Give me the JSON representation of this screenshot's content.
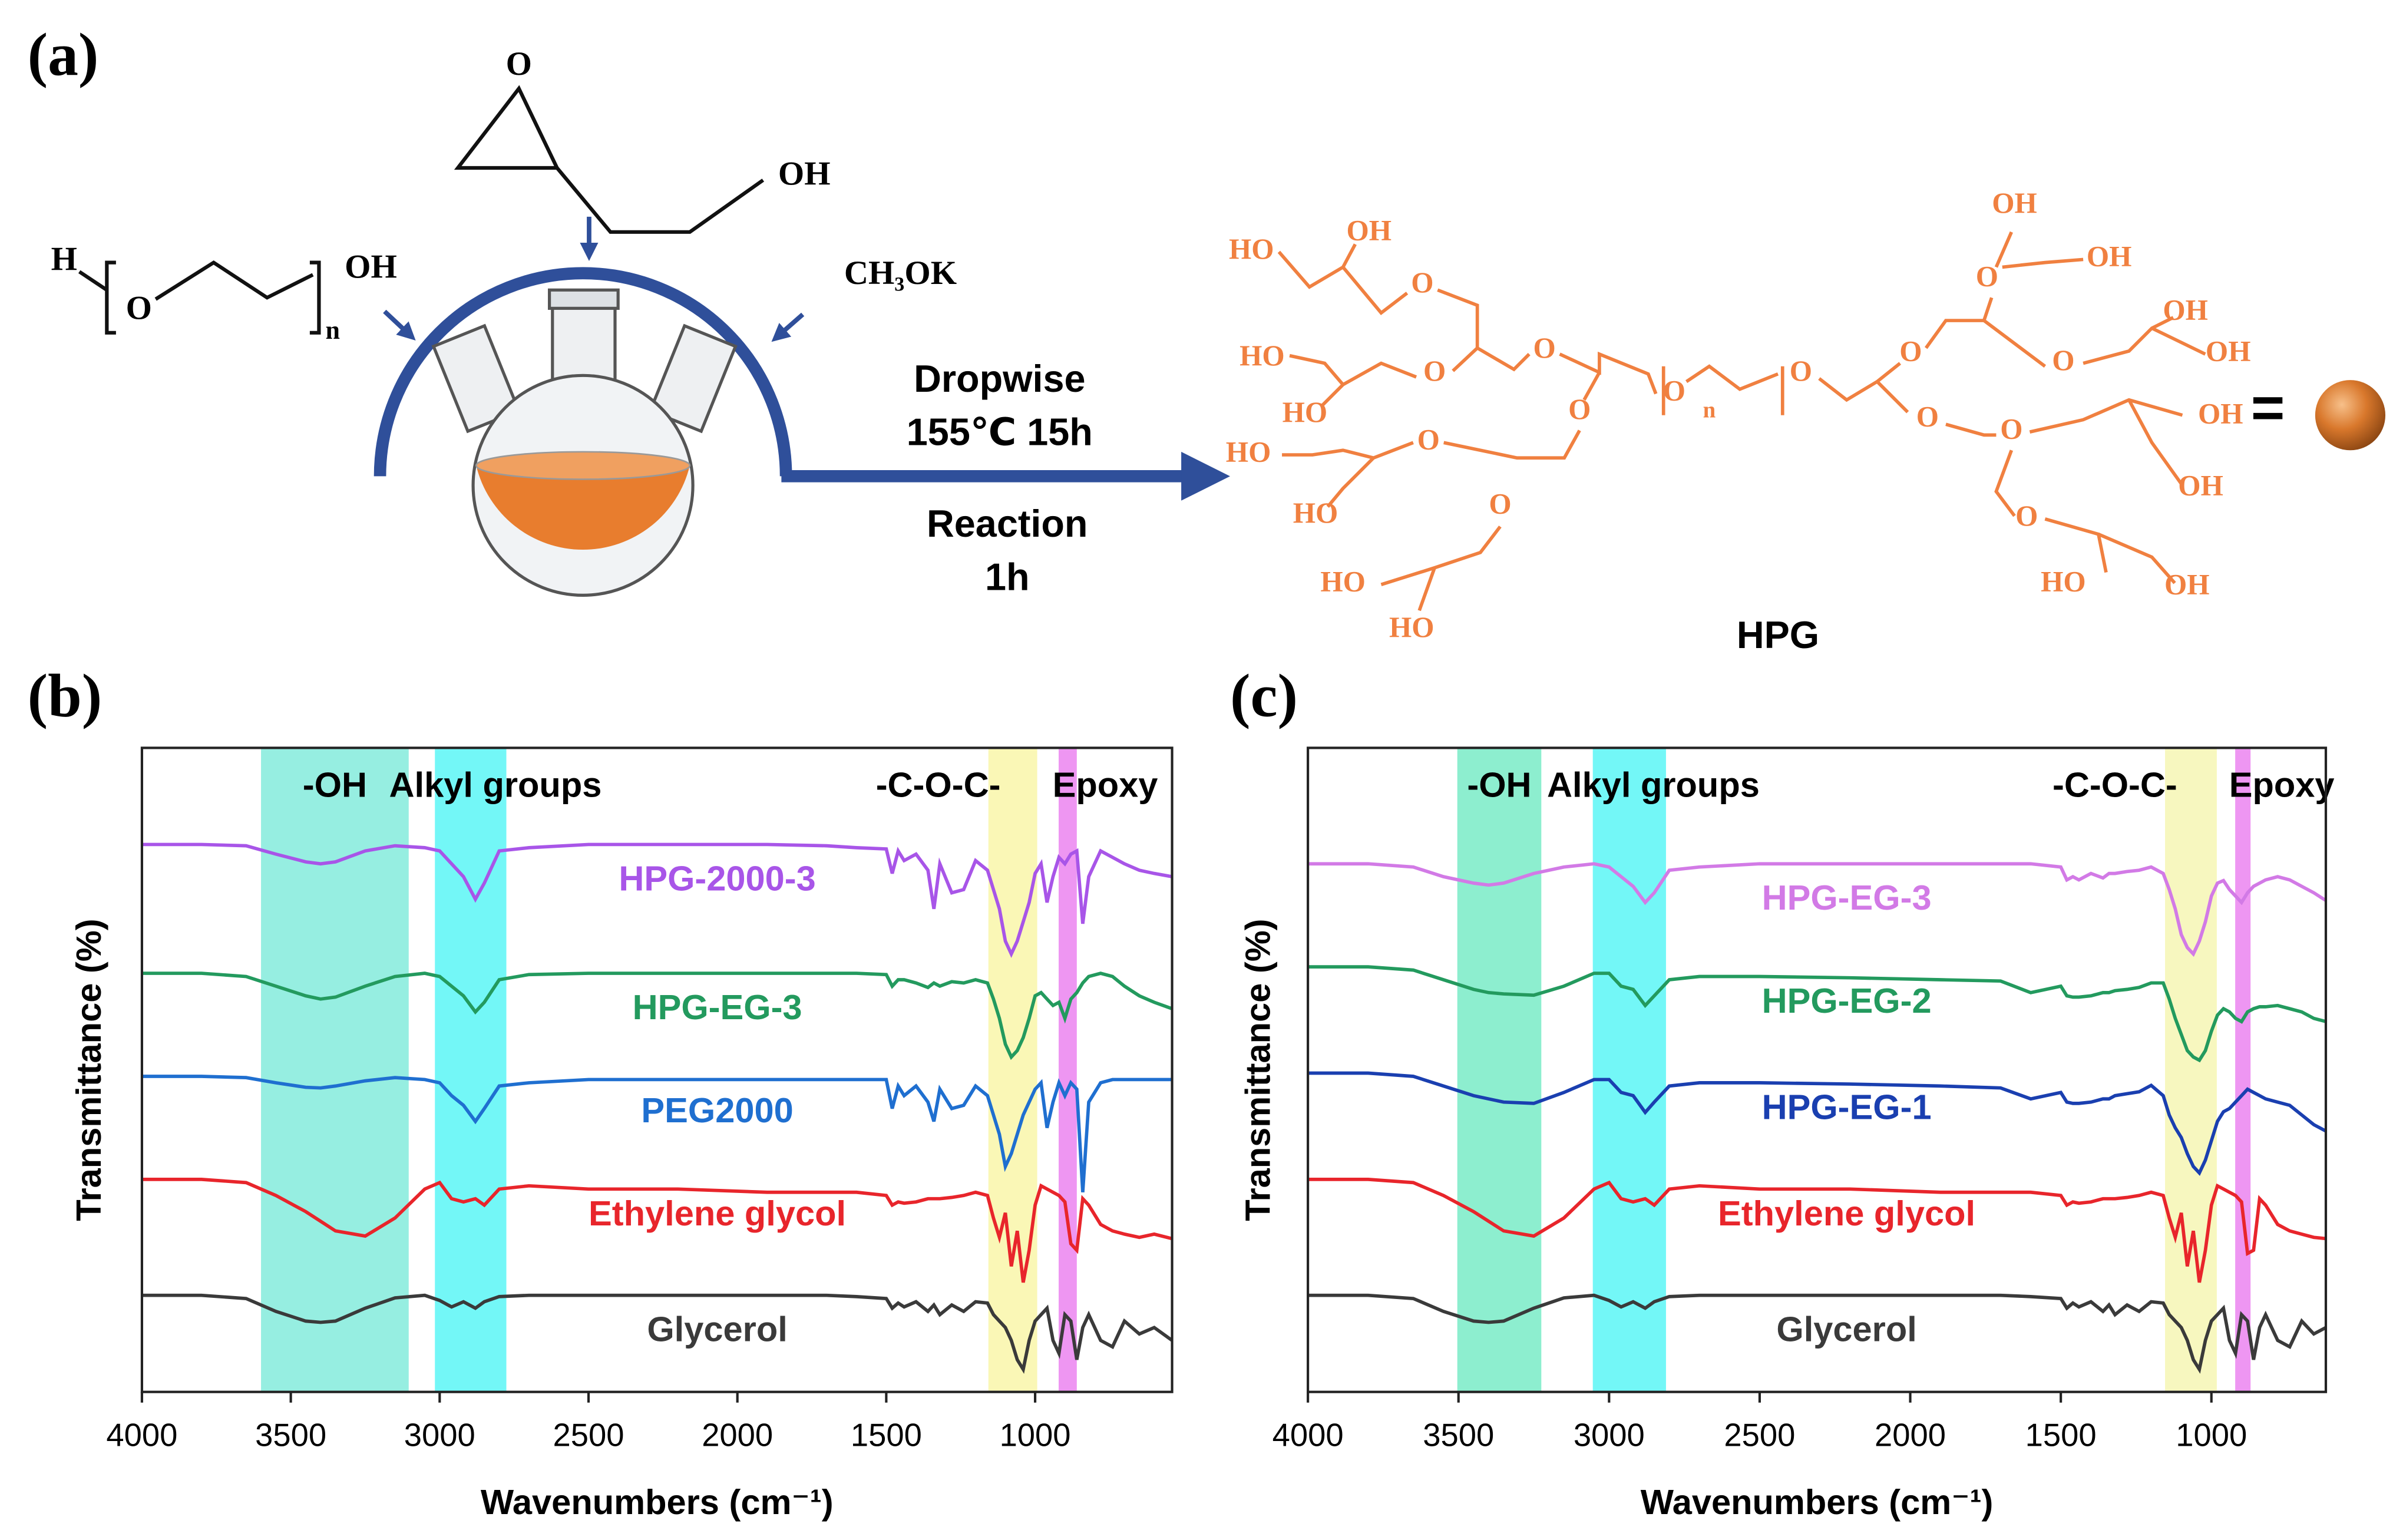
{
  "panel_a": {
    "label": "(a)",
    "glycidol_o": "O",
    "glycidol_oh": "OH",
    "peg_h": "H",
    "peg_o": "O",
    "peg_oh": "OH",
    "peg_n": "n",
    "catalyst": "CH₃OK",
    "conditions": [
      "Dropwise",
      "155℃ 15h",
      "Reaction",
      "1h"
    ],
    "product": "HPG",
    "equals": "=",
    "hpg_labels": [
      "HO",
      "OH",
      "O",
      "O",
      "HO",
      "O",
      "HO",
      "O",
      "HO",
      "O",
      "HO",
      "O",
      "HO",
      "HO",
      "O",
      "n",
      "O",
      "OH",
      "O",
      "OH",
      "O",
      "OH",
      "O",
      "OH",
      "O",
      "OH",
      "O",
      "OH",
      "O",
      "HO",
      "OH"
    ]
  },
  "chart_data": [
    {
      "type": "line",
      "panel_label": "(b)",
      "x_label": "Wavenumbers (cm⁻¹)",
      "y_label": "Transmittance (%)",
      "xlim": [
        4000,
        540
      ],
      "ylim": [
        0,
        100
      ],
      "xticks": [
        4000,
        3500,
        3000,
        2500,
        2000,
        1500,
        1000
      ],
      "bands": [
        {
          "label": "-OH",
          "range": [
            3600,
            3104
          ],
          "color": "#40e0c8"
        },
        {
          "label": "Alkyl groups",
          "range": [
            3016,
            2776
          ],
          "color": "#00f0f0"
        },
        {
          "label": "-C-O-C-",
          "range": [
            1157,
            993
          ],
          "color": "#f5f07a"
        },
        {
          "label": "Epoxy",
          "range": [
            921,
            860
          ],
          "color": "#e040e8"
        }
      ],
      "x": [
        4000,
        3800,
        3650,
        3550,
        3450,
        3400,
        3350,
        3250,
        3150,
        3050,
        3000,
        2960,
        2920,
        2880,
        2850,
        2800,
        2700,
        2500,
        2200,
        1900,
        1700,
        1600,
        1500,
        1480,
        1460,
        1440,
        1400,
        1360,
        1340,
        1320,
        1280,
        1240,
        1200,
        1160,
        1140,
        1120,
        1100,
        1080,
        1060,
        1040,
        1020,
        1000,
        980,
        960,
        940,
        920,
        900,
        880,
        860,
        840,
        820,
        780,
        740,
        700,
        650,
        600,
        540
      ],
      "series": [
        {
          "name": "Glycerol",
          "color": "#3a3a3a",
          "values": [
            15,
            15,
            14.5,
            12.5,
            11,
            10.8,
            11,
            13,
            14.6,
            15,
            14.2,
            13.2,
            14,
            13,
            14,
            14.8,
            15,
            15,
            15,
            15,
            15,
            14.8,
            14.5,
            13,
            13.8,
            13.2,
            14,
            12.5,
            13.5,
            12,
            13.5,
            12.5,
            14,
            13.8,
            12,
            11,
            10,
            8,
            5,
            3.5,
            8,
            11,
            12,
            13,
            8,
            6,
            12,
            11,
            5,
            10,
            12,
            8,
            7,
            11,
            9,
            10,
            8
          ]
        },
        {
          "name": "Ethylene glycol",
          "color": "#e8252b",
          "values": [
            33,
            33,
            32.5,
            30.5,
            28,
            26.5,
            25,
            24.2,
            27,
            31.5,
            32.5,
            30,
            29.5,
            30,
            29,
            31.5,
            32,
            31.5,
            31.5,
            31,
            31,
            31,
            30.5,
            29,
            29.5,
            29.3,
            29.5,
            30,
            30,
            30,
            30.2,
            30.5,
            31,
            30.5,
            27,
            24,
            27.8,
            19.5,
            25,
            17,
            22,
            29,
            32,
            31.5,
            31,
            30.5,
            29.5,
            23,
            22,
            30,
            29,
            26,
            25,
            24.5,
            24,
            24.5,
            23.8
          ]
        },
        {
          "name": "PEG2000",
          "color": "#1f6fd0",
          "values": [
            49,
            49,
            48.8,
            48,
            47.3,
            47.2,
            47.5,
            48.3,
            48.8,
            48.5,
            48,
            46,
            44.5,
            42,
            44,
            47.5,
            48,
            48.5,
            48.5,
            48.5,
            48.5,
            48.5,
            48.5,
            44,
            47.5,
            46,
            47.5,
            45,
            42,
            47,
            44,
            44.5,
            47.5,
            46,
            43,
            40,
            35,
            37,
            40,
            43,
            45,
            47,
            48,
            41,
            45,
            48,
            46,
            48,
            47,
            31,
            45,
            48,
            48.5,
            48.5,
            48.5,
            48.5,
            48.5
          ]
        },
        {
          "name": "HPG-EG-3",
          "color": "#239a5e",
          "values": [
            65,
            65,
            64.5,
            63,
            61.5,
            61,
            61.3,
            63,
            64.5,
            65,
            64.5,
            63,
            61.5,
            59,
            60.5,
            64,
            64.8,
            65,
            65,
            65,
            65,
            65,
            64.8,
            63,
            64,
            64,
            63.5,
            62.8,
            63.5,
            63,
            63.7,
            63.5,
            64,
            63.5,
            61,
            58,
            54,
            52,
            53,
            55,
            58,
            61.5,
            62,
            61,
            60,
            60.5,
            58,
            61,
            62,
            63.5,
            64.5,
            65,
            64.5,
            63,
            61.5,
            60.5,
            59.5
          ]
        },
        {
          "name": "HPG-2000-3",
          "color": "#a855e8",
          "values": [
            85,
            85,
            84.8,
            83.5,
            82.3,
            82,
            82.3,
            84,
            84.8,
            84.5,
            84,
            82,
            80,
            76.5,
            79,
            84,
            84.5,
            85,
            85,
            85,
            84.8,
            84.5,
            84.3,
            80.5,
            84,
            82.5,
            83.5,
            81,
            75,
            82,
            77.5,
            78,
            82.5,
            81,
            78,
            75,
            70,
            68,
            70,
            73,
            76,
            80.5,
            82,
            76,
            80,
            83,
            82,
            83.5,
            84,
            72.7,
            80,
            84,
            83,
            82,
            81,
            80.5,
            80
          ]
        }
      ]
    },
    {
      "type": "line",
      "panel_label": "(c)",
      "x_label": "Wavenumbers (cm⁻¹)",
      "y_label": "Transmittance (%)",
      "xlim": [
        4000,
        620
      ],
      "ylim": [
        0,
        100
      ],
      "xticks": [
        4000,
        3500,
        3000,
        2500,
        2000,
        1500,
        1000
      ],
      "bands": [
        {
          "label": "-OH",
          "range": [
            3504,
            3225
          ],
          "color": "#30e0a8"
        },
        {
          "label": "Alkyl groups",
          "range": [
            3054,
            2811
          ],
          "color": "#00f0f0"
        },
        {
          "label": "-C-O-C-",
          "range": [
            1154,
            982
          ],
          "color": "#f0f08a"
        },
        {
          "label": "Epoxy",
          "range": [
            921,
            870
          ],
          "color": "#e040e8"
        }
      ],
      "x": [
        4000,
        3800,
        3650,
        3550,
        3450,
        3400,
        3350,
        3250,
        3150,
        3050,
        3000,
        2960,
        2920,
        2880,
        2850,
        2800,
        2700,
        2500,
        2200,
        1900,
        1700,
        1600,
        1500,
        1480,
        1460,
        1440,
        1400,
        1360,
        1340,
        1320,
        1280,
        1240,
        1200,
        1160,
        1140,
        1120,
        1100,
        1080,
        1060,
        1040,
        1020,
        1000,
        980,
        960,
        940,
        920,
        900,
        880,
        860,
        840,
        820,
        780,
        740,
        700,
        660,
        620
      ],
      "series": [
        {
          "name": "Glycerol",
          "color": "#3a3a3a",
          "values": [
            15,
            15,
            14.5,
            12.5,
            11,
            10.8,
            11,
            13,
            14.6,
            15,
            14.2,
            13.2,
            14,
            13,
            14,
            14.8,
            15,
            15,
            15,
            15,
            15,
            14.8,
            14.5,
            13,
            13.8,
            13.2,
            14,
            12.5,
            13.5,
            12,
            13.5,
            12.5,
            14,
            13.8,
            12,
            11,
            10,
            8,
            5,
            3.5,
            8,
            11,
            12,
            13,
            8,
            6,
            12,
            11,
            5,
            10,
            12,
            8,
            7,
            11,
            9,
            10
          ]
        },
        {
          "name": "Ethylene glycol",
          "color": "#e8252b",
          "values": [
            33,
            33,
            32.5,
            30.5,
            28,
            26.5,
            25,
            24.2,
            27,
            31.5,
            32.5,
            30,
            29.5,
            30,
            29,
            31.5,
            32,
            31.5,
            31.5,
            31,
            31,
            31,
            30.5,
            29,
            29.5,
            29.3,
            29.5,
            30,
            30,
            30,
            30.2,
            30.5,
            31,
            30.5,
            27,
            24,
            27.8,
            19.5,
            25,
            17,
            22,
            29,
            32,
            31.5,
            31,
            30.5,
            29.5,
            21.5,
            22,
            30,
            29,
            26,
            25,
            24.5,
            24,
            23.8
          ]
        },
        {
          "name": "HPG-EG-1",
          "color": "#1a3fb0",
          "values": [
            49.5,
            49.5,
            49,
            47.5,
            46,
            45.5,
            45,
            44.8,
            46.5,
            48.5,
            48.5,
            46.5,
            46,
            43.4,
            45,
            47.5,
            48,
            48,
            47.8,
            47.5,
            47.2,
            45.5,
            46.5,
            45,
            44.8,
            44.8,
            45,
            45.5,
            45.5,
            46,
            46.3,
            46.6,
            47.6,
            46,
            43,
            41,
            39.5,
            37,
            35,
            34,
            36,
            39,
            42,
            43.5,
            44,
            45,
            46,
            47,
            46.5,
            46,
            45.5,
            45,
            44.5,
            43,
            41.5,
            40.5
          ]
        },
        {
          "name": "HPG-EG-2",
          "color": "#239a5e",
          "values": [
            66,
            66,
            65.5,
            64,
            62.5,
            62,
            61.8,
            61.6,
            63,
            65,
            65,
            63,
            62.5,
            60,
            61.5,
            64,
            64.5,
            64.5,
            64.3,
            64,
            63.8,
            62,
            63,
            61.5,
            61.3,
            61.3,
            61.5,
            62,
            62,
            62.3,
            62.5,
            62.8,
            63.5,
            63.5,
            61,
            58,
            55.5,
            53,
            52,
            51.5,
            53,
            56,
            58.5,
            59.5,
            59,
            58,
            57.5,
            59,
            59.5,
            59.8,
            59.8,
            60,
            59.5,
            59,
            58,
            57.5
          ]
        },
        {
          "name": "HPG-EG-3",
          "color": "#d27ae6",
          "values": [
            82,
            82,
            81.5,
            80,
            79,
            78.7,
            79,
            80.5,
            81.5,
            82,
            81.5,
            80,
            78.5,
            76,
            77.5,
            81,
            81.5,
            82,
            82,
            82,
            82,
            82,
            81.5,
            79.5,
            80,
            79.5,
            80.5,
            79.8,
            80.5,
            80.5,
            80.8,
            81,
            81.5,
            80.5,
            78,
            75,
            71,
            69,
            68,
            70,
            73,
            77,
            79,
            79.4,
            78,
            77,
            76,
            77.5,
            78.5,
            79,
            79.5,
            80,
            79.5,
            78.5,
            77.5,
            76.3
          ]
        }
      ]
    }
  ]
}
